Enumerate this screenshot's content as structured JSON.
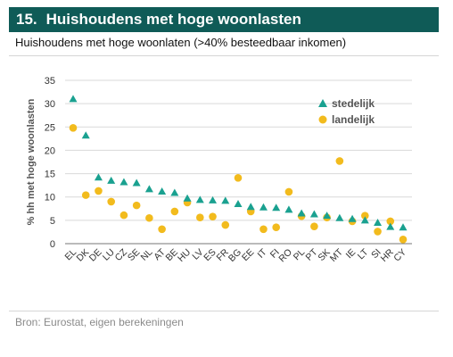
{
  "header": {
    "number": "15.",
    "title": "Huishoudens met hoge woonlasten"
  },
  "subtitle": "Huishoudens met hoge woonlaten (>40% besteedbaar inkomen)",
  "source": "Bron: Eurostat, eigen berekeningen",
  "colors": {
    "header_bg": "#0f5b57",
    "stedelijk": "#1aa190",
    "landelijk": "#f2bb1d"
  },
  "chart_data": {
    "type": "scatter",
    "ylabel": "% hh met hoge woonlasten",
    "ylim": [
      0,
      35
    ],
    "yticks": [
      0,
      5,
      10,
      15,
      20,
      25,
      30,
      35
    ],
    "grid": true,
    "legend_position": "top-right",
    "categories": [
      "EL",
      "DK",
      "DE",
      "LU",
      "CZ",
      "SE",
      "NL",
      "AT",
      "BE",
      "HU",
      "LV",
      "ES",
      "FR",
      "BG",
      "EE",
      "IT",
      "FI",
      "RO",
      "PL",
      "PT",
      "SK",
      "MT",
      "IE",
      "LT",
      "SI",
      "HR",
      "CY"
    ],
    "series": [
      {
        "name": "stedelijk",
        "marker": "triangle",
        "values": [
          31,
          23.2,
          14.2,
          13.5,
          13.2,
          13,
          11.7,
          11.2,
          10.9,
          9.7,
          9.4,
          9.3,
          9.2,
          8.5,
          7.9,
          7.8,
          7.7,
          7.3,
          6.5,
          6.3,
          6,
          5.5,
          5.3,
          5,
          4.5,
          3.6,
          3.5
        ]
      },
      {
        "name": "landelijk",
        "marker": "circle",
        "values": [
          24.8,
          10.4,
          11.3,
          9,
          6.1,
          8.2,
          5.5,
          3.1,
          6.9,
          8.8,
          5.6,
          5.8,
          4,
          14.1,
          6.9,
          3.1,
          3.5,
          11.1,
          5.9,
          3.7,
          5.6,
          17.7,
          4.8,
          6,
          2.6,
          4.8,
          0.9
        ]
      }
    ]
  }
}
